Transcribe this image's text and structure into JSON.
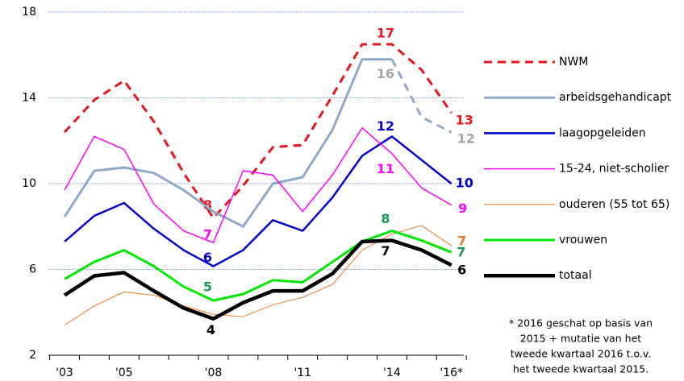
{
  "chart_data": {
    "type": "line",
    "categories": [
      "'03",
      null,
      "'05",
      null,
      null,
      "'08",
      null,
      null,
      "'11",
      null,
      null,
      "'14",
      null,
      "'16*"
    ],
    "ylim": [
      2,
      18
    ],
    "yticks": [
      2,
      6,
      10,
      14,
      18
    ],
    "grid": true,
    "legend": "right",
    "series": [
      {
        "name": "NWM",
        "color": "#e8141b",
        "label_color": "#e8141b",
        "dashed": true,
        "values": [
          12.4,
          13.9,
          14.8,
          12.9,
          10.5,
          8.4,
          9.9,
          11.7,
          11.8,
          14.1,
          16.5,
          16.5,
          15.3,
          13.3
        ],
        "value_labels": [
          null,
          null,
          null,
          null,
          null,
          "8",
          null,
          null,
          null,
          null,
          null,
          "17",
          null,
          "13"
        ]
      },
      {
        "name": "arbeidsgehandicapt",
        "color": "#8ea9c9",
        "label_color": "#a6a6a6",
        "dashed_from": 11,
        "values": [
          8.45,
          10.6,
          10.75,
          10.5,
          9.7,
          8.7,
          8.0,
          10.0,
          10.3,
          12.5,
          15.8,
          15.8,
          13.1,
          12.4
        ],
        "value_labels": [
          null,
          null,
          null,
          null,
          null,
          null,
          null,
          null,
          null,
          null,
          null,
          "16",
          null,
          "12"
        ]
      },
      {
        "name": "laagopgeleiden",
        "color": "#0000cc",
        "label_color": "#0000cc",
        "values": [
          7.3,
          8.5,
          9.1,
          7.9,
          6.9,
          6.15,
          6.9,
          8.3,
          7.8,
          9.35,
          11.3,
          12.2,
          11.1,
          10.0
        ],
        "value_labels": [
          null,
          null,
          null,
          null,
          null,
          "6",
          null,
          null,
          null,
          null,
          null,
          "12",
          null,
          "10"
        ]
      },
      {
        "name": "15-24, niet-scholier",
        "color": "#ff00ff",
        "label_color": "#ff00ff",
        "values": [
          9.7,
          12.2,
          11.6,
          9.05,
          7.8,
          7.25,
          10.6,
          10.4,
          8.7,
          10.4,
          12.6,
          11.4,
          9.8,
          9.0
        ],
        "value_labels": [
          null,
          null,
          null,
          null,
          null,
          "7",
          null,
          null,
          null,
          null,
          null,
          "11",
          null,
          "9"
        ]
      },
      {
        "name": "ouderen (55 tot 65)",
        "color": "#f07a2a",
        "label_color": "#f07a2a",
        "values": [
          3.4,
          4.3,
          4.95,
          4.8,
          4.3,
          3.9,
          3.8,
          4.35,
          4.7,
          5.3,
          6.9,
          7.65,
          8.05,
          7.1
        ],
        "value_labels": [
          null,
          null,
          null,
          null,
          null,
          null,
          null,
          null,
          null,
          null,
          null,
          null,
          null,
          "7"
        ]
      },
      {
        "name": "vrouwen",
        "color": "#00e600",
        "label_color": "#1a9a50",
        "values": [
          5.55,
          6.35,
          6.9,
          6.15,
          5.2,
          4.55,
          4.85,
          5.5,
          5.4,
          6.35,
          7.3,
          7.8,
          7.35,
          6.8
        ],
        "value_labels": [
          null,
          null,
          null,
          null,
          null,
          "5",
          null,
          null,
          null,
          null,
          null,
          "8",
          null,
          "7"
        ]
      },
      {
        "name": "totaal",
        "color": "#000000",
        "label_color": "#000000",
        "values": [
          4.8,
          5.7,
          5.85,
          5.0,
          4.2,
          3.7,
          4.45,
          5.0,
          5.0,
          5.8,
          7.3,
          7.35,
          6.9,
          6.2
        ],
        "value_labels": [
          null,
          null,
          null,
          null,
          null,
          "4",
          null,
          null,
          null,
          null,
          null,
          "7",
          null,
          "6"
        ]
      }
    ],
    "note": [
      "* 2016 geschat op basis van",
      "2015 + mutatie van het",
      "tweede kwartaal 2016 t.o.v.",
      "het tweede kwartaal 2015."
    ]
  }
}
